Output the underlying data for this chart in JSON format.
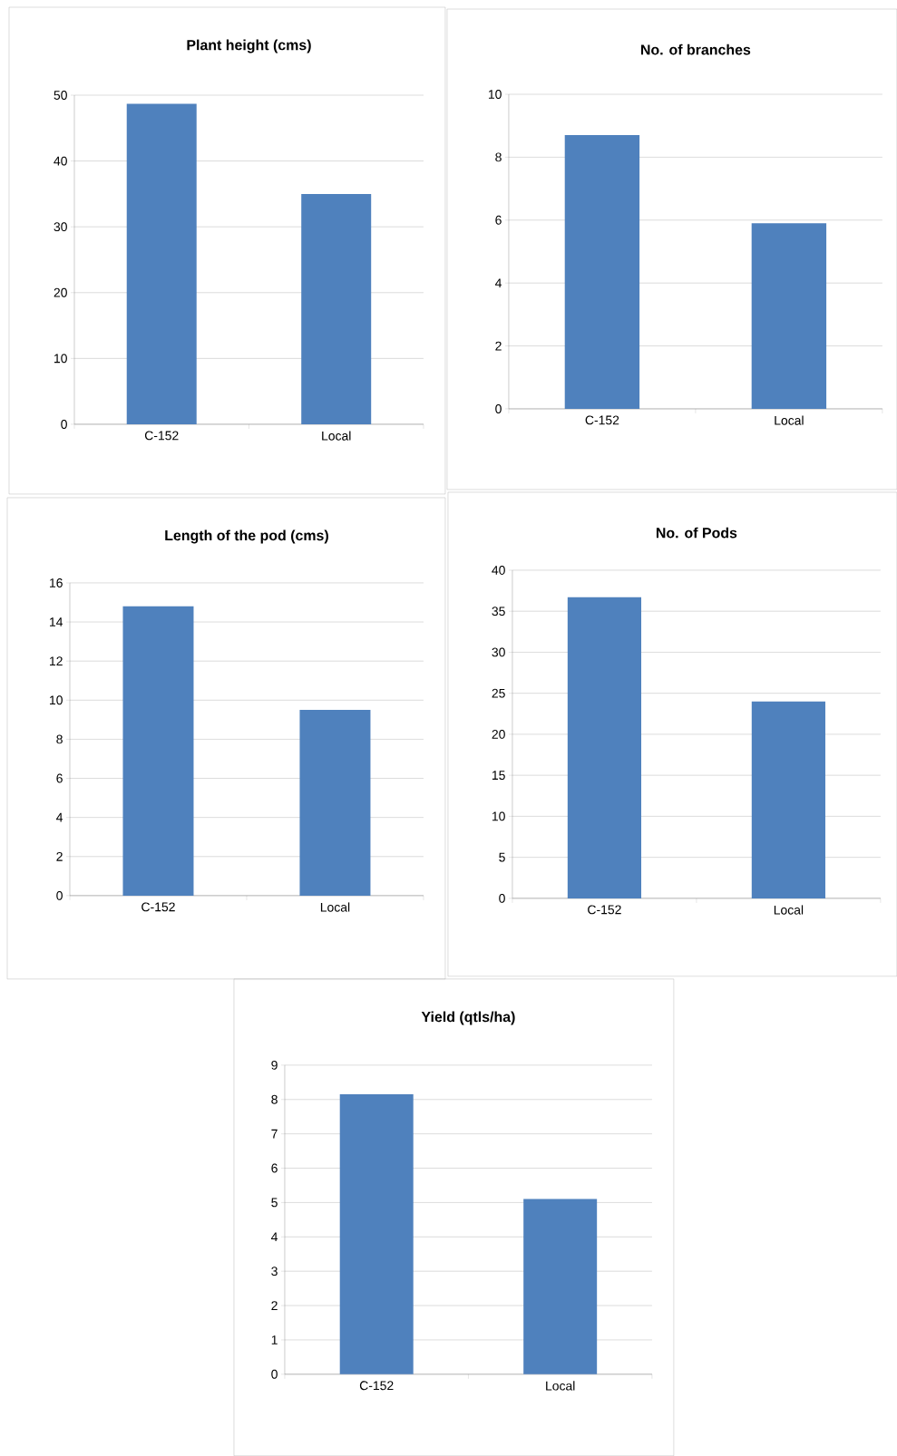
{
  "chart_data": [
    {
      "type": "bar",
      "title": "Plant height (cms)",
      "categories": [
        "C-152",
        "Local"
      ],
      "values": [
        48.7,
        35
      ],
      "color": "#4f81bd",
      "ylim": [
        0,
        50
      ],
      "yticks": [
        0,
        10,
        20,
        30,
        40,
        50
      ],
      "grid": "y"
    },
    {
      "type": "bar",
      "title": "No. of branches",
      "categories": [
        "C-152",
        "Local"
      ],
      "values": [
        8.7,
        5.9
      ],
      "color": "#4f81bd",
      "ylim": [
        0,
        10
      ],
      "yticks": [
        0,
        2,
        4,
        6,
        8,
        10
      ],
      "grid": "y"
    },
    {
      "type": "bar",
      "title": "Length of the pod (cms)",
      "categories": [
        "C-152",
        "Local"
      ],
      "values": [
        14.8,
        9.5
      ],
      "color": "#4f81bd",
      "ylim": [
        0,
        16
      ],
      "yticks": [
        0,
        2,
        4,
        6,
        8,
        10,
        12,
        14,
        16
      ],
      "grid": "y"
    },
    {
      "type": "bar",
      "title": "No. of Pods",
      "categories": [
        "C-152",
        "Local"
      ],
      "values": [
        36.7,
        24
      ],
      "color": "#4f81bd",
      "ylim": [
        0,
        40
      ],
      "yticks": [
        0,
        5,
        10,
        15,
        20,
        25,
        30,
        35,
        40
      ],
      "grid": "y"
    },
    {
      "type": "bar",
      "title": "Yield (qtls/ha)",
      "categories": [
        "C-152",
        "Local"
      ],
      "values": [
        8.15,
        5.1
      ],
      "color": "#4f81bd",
      "ylim": [
        0,
        9
      ],
      "yticks": [
        0,
        1,
        2,
        3,
        4,
        5,
        6,
        7,
        8,
        9
      ],
      "grid": "y"
    }
  ]
}
